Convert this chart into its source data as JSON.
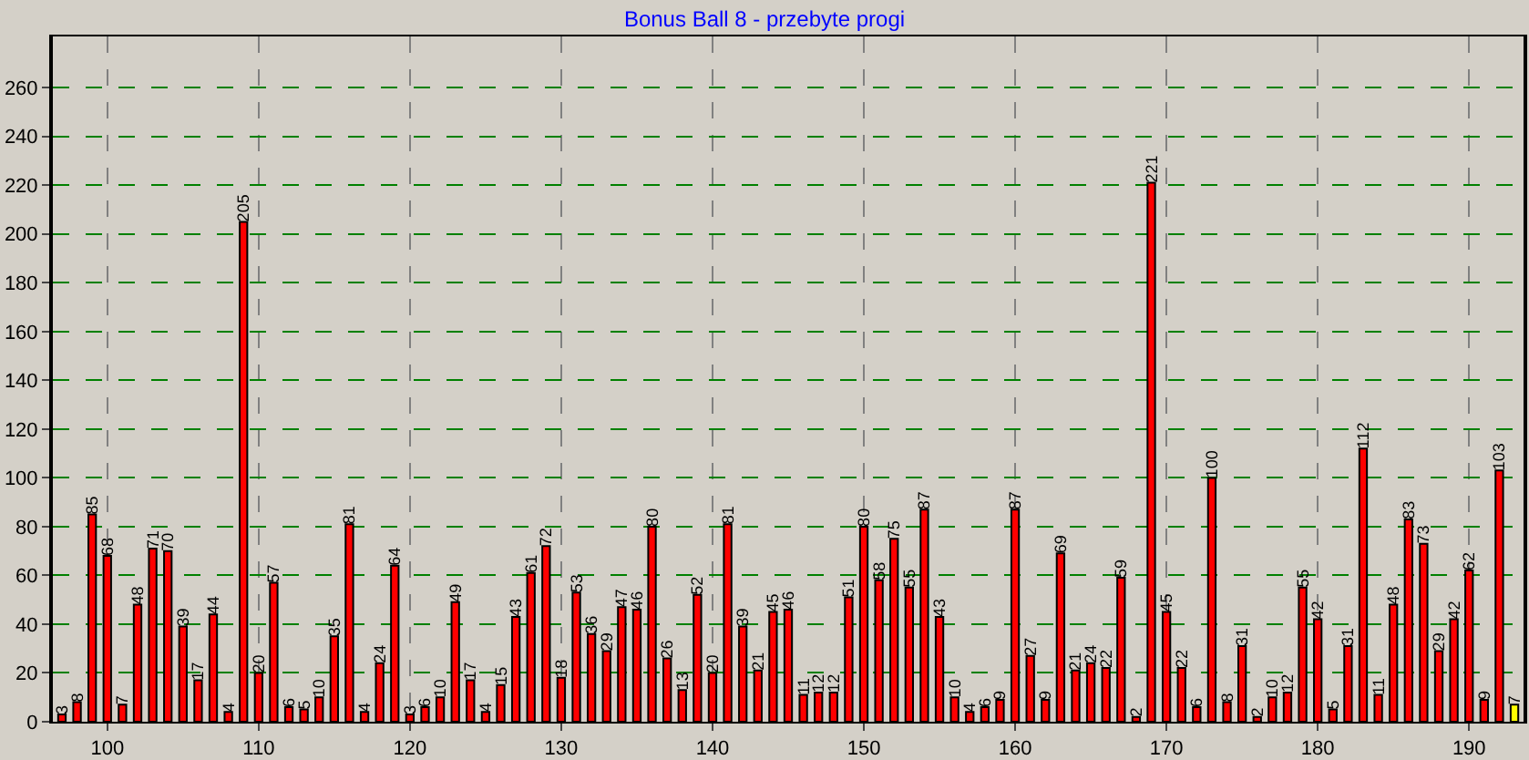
{
  "chart_data": {
    "type": "bar",
    "title": "Bonus Ball 8 - przebyte progi",
    "x": [
      97,
      98,
      99,
      100,
      101,
      102,
      103,
      104,
      105,
      106,
      107,
      108,
      109,
      110,
      111,
      112,
      113,
      114,
      115,
      116,
      117,
      118,
      119,
      120,
      121,
      122,
      123,
      124,
      125,
      126,
      127,
      128,
      129,
      130,
      131,
      132,
      133,
      134,
      135,
      136,
      137,
      138,
      139,
      140,
      141,
      142,
      143,
      144,
      145,
      146,
      147,
      148,
      149,
      150,
      151,
      152,
      153,
      154,
      155,
      156,
      157,
      158,
      159,
      160,
      161,
      162,
      163,
      164,
      165,
      166,
      167,
      168,
      169,
      170,
      171,
      172,
      173,
      174,
      175,
      176,
      177,
      178,
      179,
      180,
      181,
      182,
      183,
      184,
      185,
      186,
      187,
      188,
      189,
      190,
      191,
      192,
      193
    ],
    "values": [
      3,
      8,
      85,
      68,
      7,
      48,
      71,
      70,
      39,
      17,
      44,
      4,
      205,
      20,
      57,
      6,
      5,
      10,
      35,
      81,
      4,
      24,
      64,
      3,
      6,
      10,
      49,
      17,
      4,
      15,
      43,
      61,
      72,
      18,
      53,
      36,
      29,
      47,
      46,
      80,
      26,
      13,
      52,
      20,
      81,
      39,
      21,
      45,
      46,
      11,
      12,
      12,
      51,
      80,
      58,
      75,
      55,
      87,
      43,
      10,
      4,
      6,
      9,
      87,
      27,
      9,
      69,
      21,
      24,
      22,
      59,
      2,
      221,
      45,
      22,
      6,
      100,
      8,
      31,
      2,
      10,
      12,
      55,
      42,
      5,
      31,
      112,
      11,
      48,
      83,
      73,
      29,
      42,
      62,
      9,
      103,
      7
    ],
    "colors": [
      "#ff0000",
      "#ff0000",
      "#ff0000",
      "#ff0000",
      "#ff0000",
      "#ff0000",
      "#ff0000",
      "#ff0000",
      "#ff0000",
      "#ff0000",
      "#ff0000",
      "#ff0000",
      "#ff0000",
      "#ff0000",
      "#ff0000",
      "#ff0000",
      "#ff0000",
      "#ff0000",
      "#ff0000",
      "#ff0000",
      "#ff0000",
      "#ff0000",
      "#ff0000",
      "#ff0000",
      "#ff0000",
      "#ff0000",
      "#ff0000",
      "#ff0000",
      "#ff0000",
      "#ff0000",
      "#ff0000",
      "#ff0000",
      "#ff0000",
      "#ff0000",
      "#ff0000",
      "#ff0000",
      "#ff0000",
      "#ff0000",
      "#ff0000",
      "#ff0000",
      "#ff0000",
      "#ff0000",
      "#ff0000",
      "#ff0000",
      "#ff0000",
      "#ff0000",
      "#ff0000",
      "#ff0000",
      "#ff0000",
      "#ff0000",
      "#ff0000",
      "#ff0000",
      "#ff0000",
      "#ff0000",
      "#ff0000",
      "#ff0000",
      "#ff0000",
      "#ff0000",
      "#ff0000",
      "#ff0000",
      "#ff0000",
      "#ff0000",
      "#ff0000",
      "#ff0000",
      "#ff0000",
      "#ff0000",
      "#ff0000",
      "#ff0000",
      "#ff0000",
      "#ff0000",
      "#ff0000",
      "#ff0000",
      "#ff0000",
      "#ff0000",
      "#ff0000",
      "#ff0000",
      "#ff0000",
      "#ff0000",
      "#ff0000",
      "#ff0000",
      "#ff0000",
      "#ff0000",
      "#ff0000",
      "#ff0000",
      "#ff0000",
      "#ff0000",
      "#ff0000",
      "#ff0000",
      "#ff0000",
      "#ff0000",
      "#ff0000",
      "#ff0000",
      "#ff0000",
      "#ff0000",
      "#ff0000",
      "#ff0000",
      "#ffff00"
    ],
    "xlim": [
      96.4,
      193.6
    ],
    "xticks": [
      100,
      110,
      120,
      130,
      140,
      150,
      160,
      170,
      180,
      190
    ],
    "ylim": [
      0,
      281
    ],
    "yticks": [
      0,
      20,
      40,
      60,
      80,
      100,
      120,
      140,
      160,
      180,
      200,
      220,
      240,
      260
    ],
    "grid": true,
    "data_labels": true,
    "legend": false
  }
}
